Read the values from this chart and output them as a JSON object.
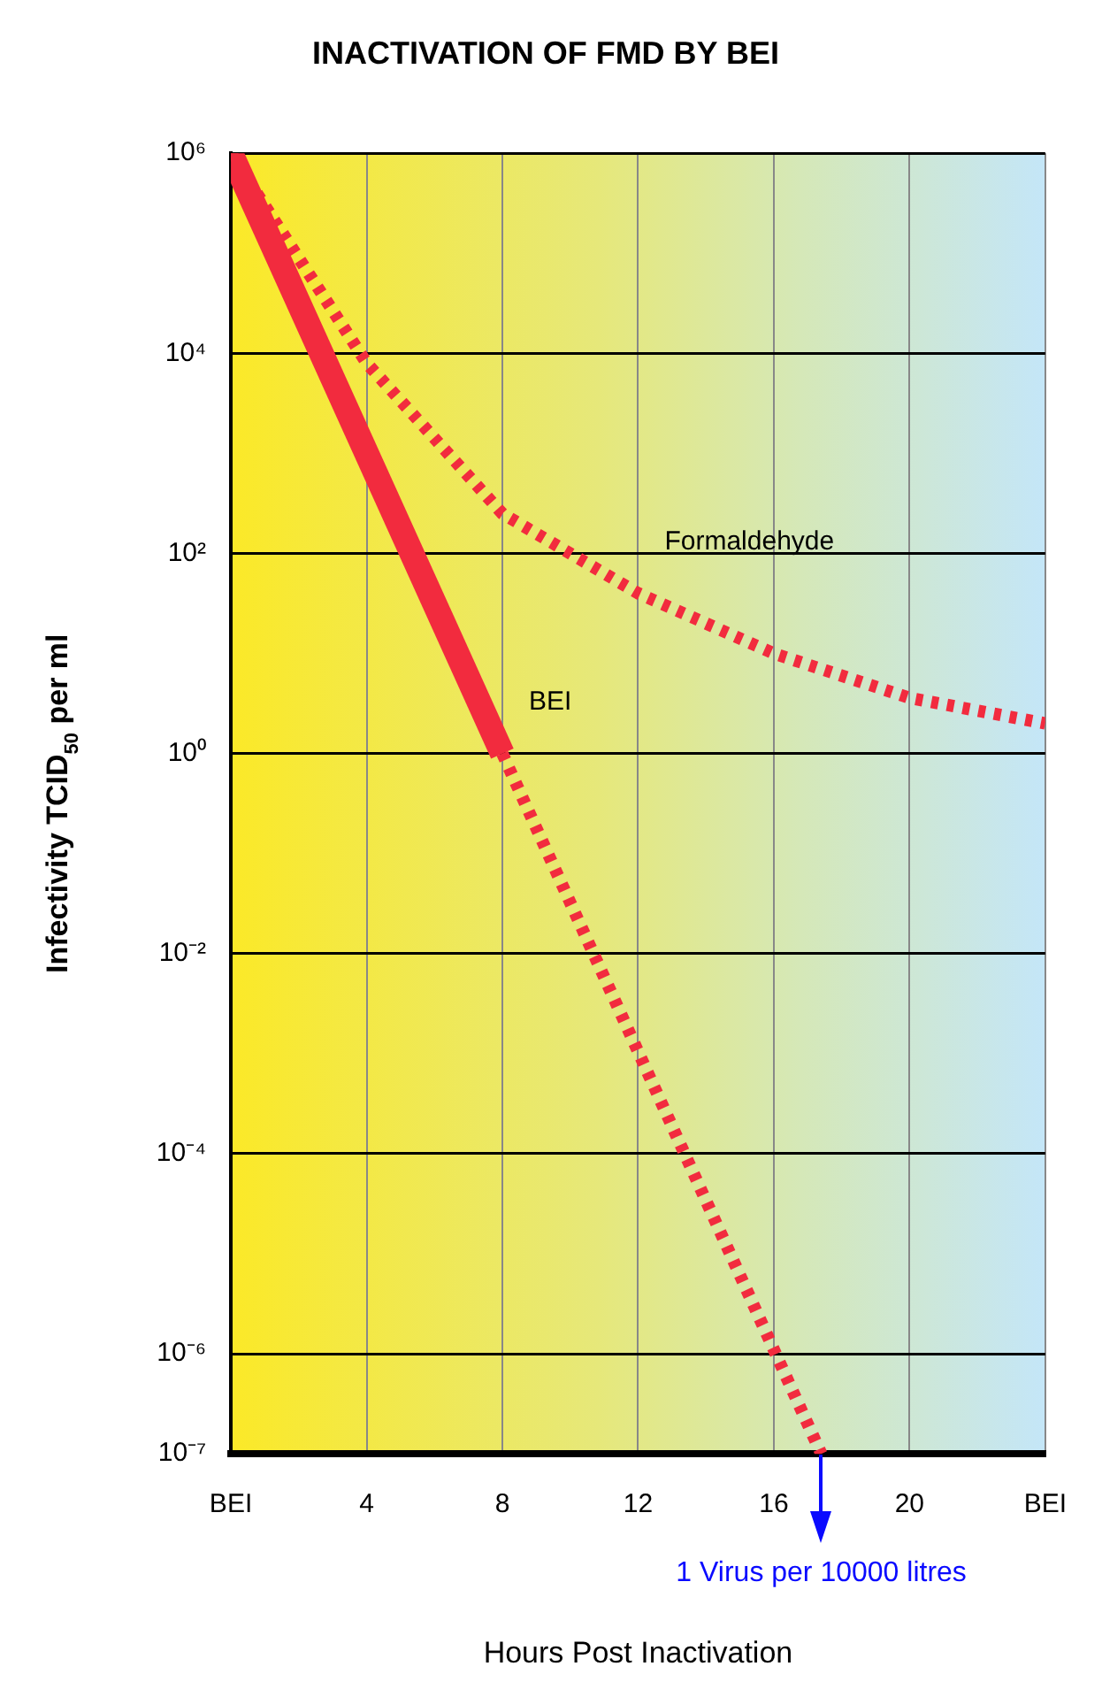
{
  "chart_data": {
    "type": "line",
    "title": "INACTIVATION OF FMD BY BEI",
    "xlabel": "Hours Post Inactivation",
    "ylabel": "Infectivity TCID$_{50}$ per ml",
    "log": "y",
    "grid": true,
    "legend": false,
    "marker": "none",
    "xlim": [
      0,
      24
    ],
    "xticks": [
      {
        "value": 0,
        "label": "BEI"
      },
      4,
      8,
      12,
      16,
      20,
      {
        "value": 24,
        "label": "BEI"
      }
    ],
    "ylim": [
      1e-07,
      1000000.0
    ],
    "yticks": [
      {
        "value": 1e-07,
        "label": "10⁻⁷"
      },
      {
        "value": 1e-06,
        "label": "10⁻⁶"
      },
      {
        "value": 0.0001,
        "label": "10⁻⁴"
      },
      {
        "value": 0.01,
        "label": "10⁻²"
      },
      {
        "value": 1,
        "label": "10⁰"
      },
      {
        "value": 100,
        "label": "10²"
      },
      {
        "value": 10000,
        "label": "10⁴"
      },
      {
        "value": 1000000,
        "label": "10⁶"
      }
    ],
    "series": [
      {
        "name": "BEI",
        "color": "#f22b3e",
        "line_style": "solid",
        "x": [
          0,
          8
        ],
        "values": [
          1000000,
          1
        ]
      },
      {
        "color": "#f22b3e",
        "line_style": "dashed",
        "x": [
          8,
          17.4
        ],
        "values": [
          1,
          1e-07
        ]
      },
      {
        "name": "Formaldehyde",
        "color": "#f22b3e",
        "line_style": "dashed",
        "x": [
          0,
          4,
          8,
          12,
          16,
          20,
          24
        ],
        "values": [
          1000000,
          8000,
          250,
          40,
          10,
          3.6,
          2
        ]
      }
    ],
    "annotations": [
      "1 Virus per 10000 litres"
    ]
  }
}
